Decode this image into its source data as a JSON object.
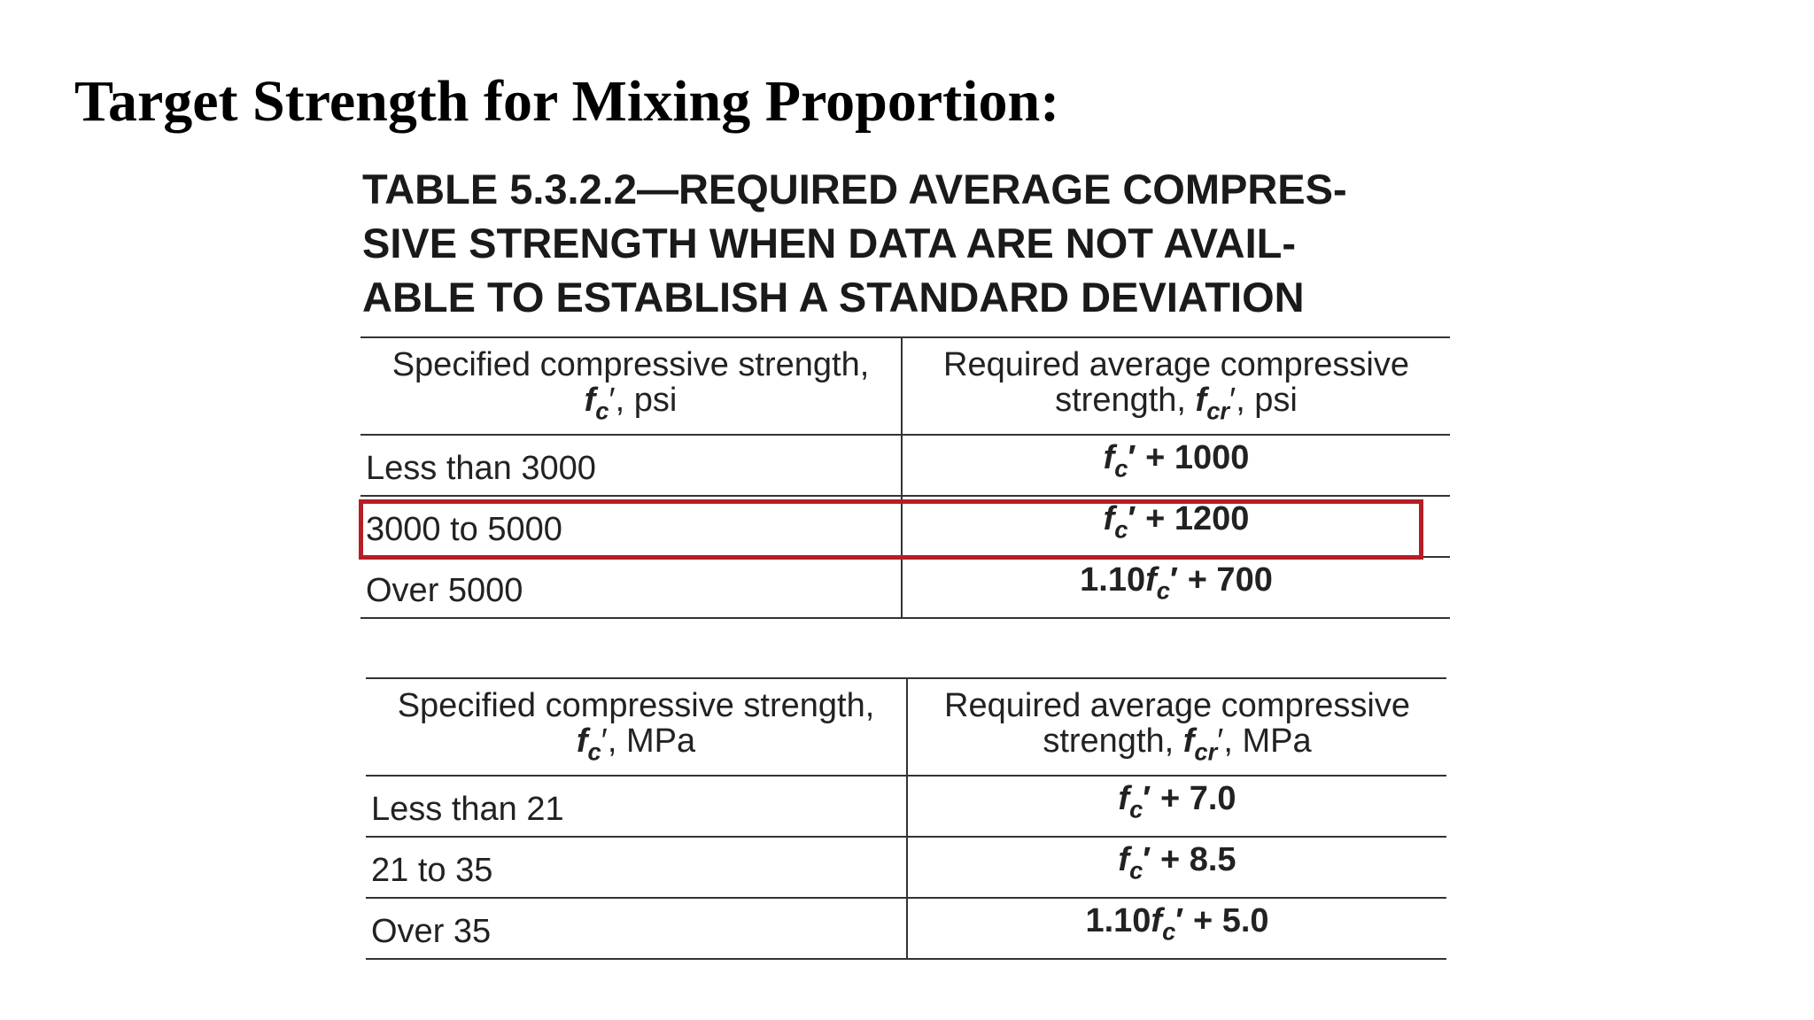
{
  "slide": {
    "title": "Target Strength for Mixing Proportion:"
  },
  "caption": {
    "lines": [
      "TABLE 5.3.2.2—REQUIRED AVERAGE COMPRES-",
      "SIVE STRENGTH WHEN DATA ARE NOT AVAIL-",
      "ABLE TO ESTABLISH A STANDARD DEVIATION"
    ]
  },
  "psi_table": {
    "header": {
      "col1_line1": "Specified compressive strength,",
      "col1_unit": ", psi",
      "col2_line1": "Required average compressive",
      "col2_prefix": "strength, ",
      "col2_unit": ", psi"
    },
    "rows": [
      {
        "specified": "Less than 3000",
        "required": "+ 1000"
      },
      {
        "specified": "3000 to 5000",
        "required": "+ 1200"
      },
      {
        "specified": "Over 5000",
        "required_coef": "1.10",
        "required": "+ 700"
      }
    ]
  },
  "mpa_table": {
    "header": {
      "col1_line1": "Specified compressive strength,",
      "col1_unit": ", MPa",
      "col2_line1": "Required average compressive",
      "col2_prefix": "strength, ",
      "col2_unit": ", MPa"
    },
    "rows": [
      {
        "specified": "Less than 21",
        "required": "+ 7.0"
      },
      {
        "specified": "21 to 35",
        "required": "+ 8.5"
      },
      {
        "specified": "Over 35",
        "required_coef": "1.10",
        "required": "+ 5.0"
      }
    ]
  },
  "symbols": {
    "f": "f",
    "c": "c",
    "cr": "cr",
    "prime": "′"
  },
  "highlight": {
    "color": "#b51e24",
    "row": "3000 to 5000"
  }
}
